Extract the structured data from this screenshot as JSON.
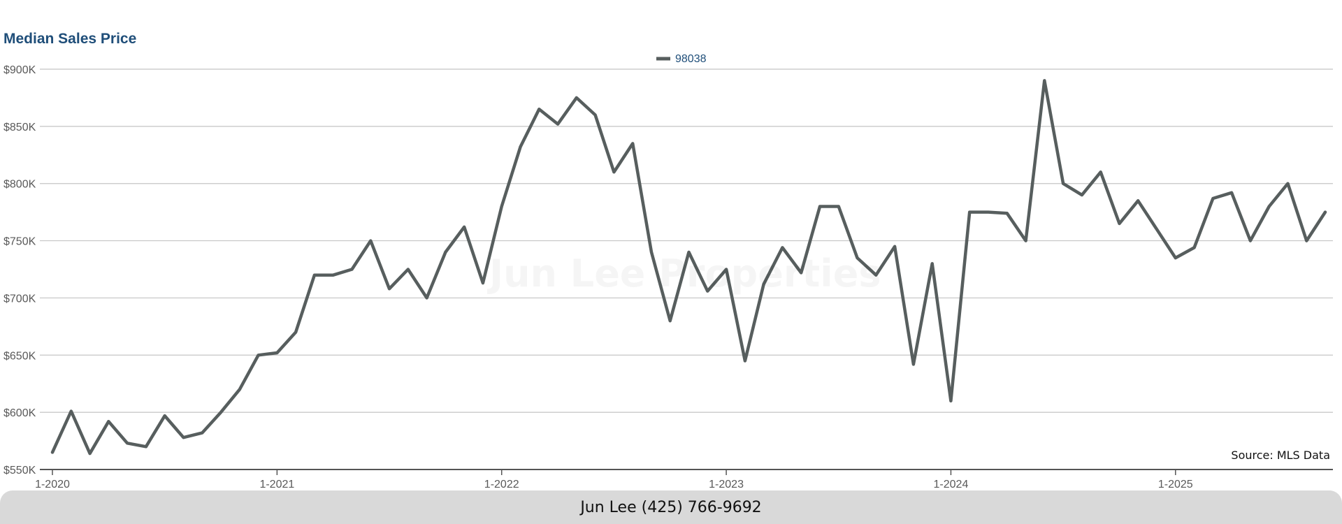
{
  "chart_data": {
    "type": "line",
    "title": "Median Sales Price",
    "xlabel": "",
    "ylabel": "",
    "ylim": [
      550000,
      900000
    ],
    "ytick_values": [
      550000,
      600000,
      650000,
      700000,
      750000,
      800000,
      850000,
      900000
    ],
    "ytick_labels": [
      "$550K",
      "$600K",
      "$650K",
      "$700K",
      "$750K",
      "$800K",
      "$850K",
      "$900K"
    ],
    "xtick_labels": [
      "1-2020",
      "1-2021",
      "1-2022",
      "1-2023",
      "1-2024",
      "1-2025"
    ],
    "grid": true,
    "legend_position": "top-center",
    "series_color": "#575e5e",
    "series": [
      {
        "name": "98038",
        "values": [
          565000,
          601000,
          564000,
          592000,
          573000,
          570000,
          597000,
          578000,
          582000,
          600000,
          620000,
          650000,
          652000,
          670000,
          720000,
          720000,
          725000,
          750000,
          708000,
          725000,
          700000,
          740000,
          762000,
          713000,
          780000,
          832000,
          865000,
          852000,
          875000,
          860000,
          810000,
          835000,
          740000,
          680000,
          740000,
          706000,
          725000,
          645000,
          712000,
          744000,
          722000,
          780000,
          780000,
          735000,
          720000,
          745000,
          642000,
          730000,
          610000,
          775000,
          775000,
          774000,
          750000,
          890000,
          800000,
          790000,
          810000,
          765000,
          785000,
          760000,
          735000,
          744000,
          787000,
          792000,
          750000,
          780000,
          800000,
          750000,
          775000
        ]
      }
    ]
  },
  "source_note": "Source: MLS Data",
  "footer_text": "Jun Lee (425) 766-9692",
  "watermark_text": "Jun Lee Properties"
}
